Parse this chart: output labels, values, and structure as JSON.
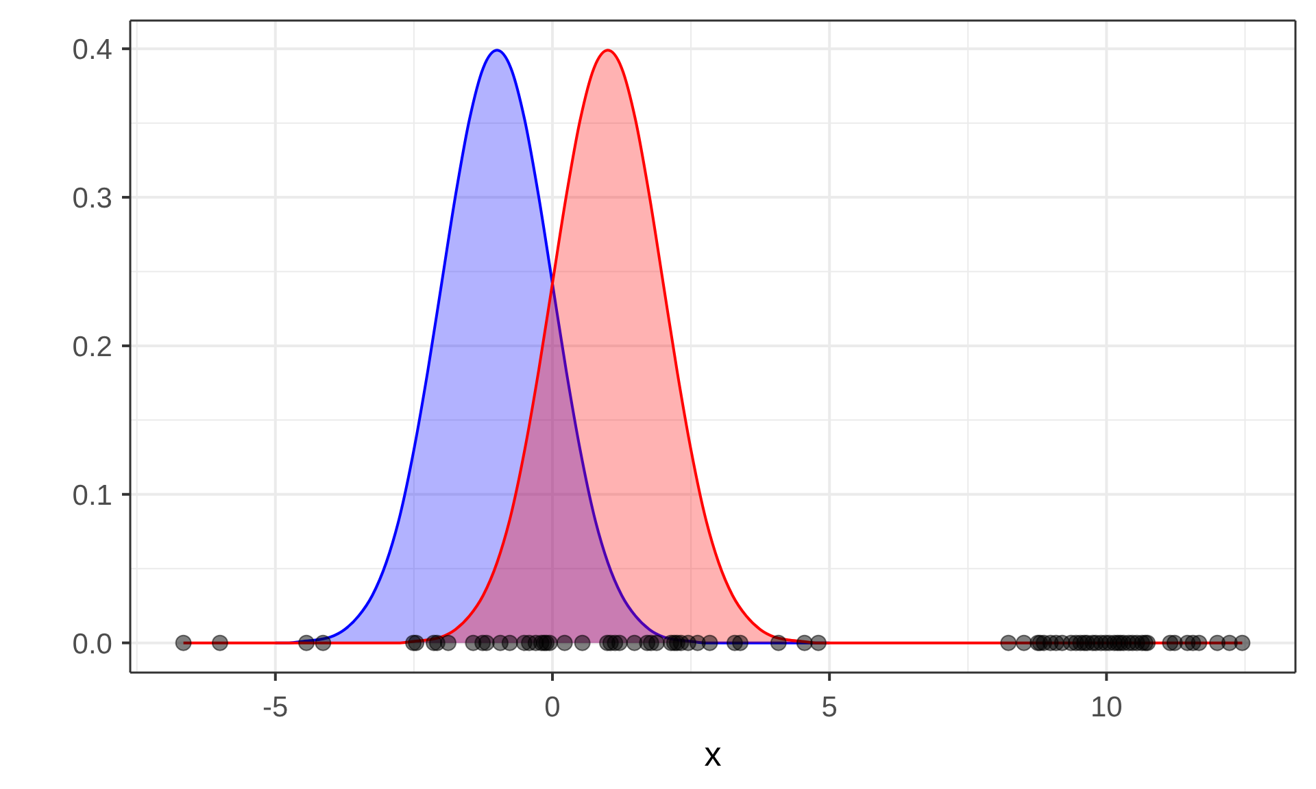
{
  "chart_data": {
    "type": "area",
    "xlabel": "x",
    "x": [
      -6.66,
      -6,
      -5.5,
      -5,
      -4.75,
      -4.5,
      -4.25,
      -4,
      -3.75,
      -3.5,
      -3.25,
      -3,
      -2.75,
      -2.5,
      -2.25,
      -2,
      -1.75,
      -1.5,
      -1.25,
      -1,
      -0.75,
      -0.5,
      -0.25,
      0,
      0.25,
      0.5,
      0.75,
      1,
      1.25,
      1.5,
      1.75,
      2,
      2.25,
      2.5,
      2.75,
      3,
      3.25,
      3.5,
      3.75,
      4,
      4.25,
      4.5,
      4.75,
      5,
      5.5,
      6,
      8,
      10,
      12.45
    ],
    "series": [
      {
        "color": "#0000ff",
        "values": [
          null,
          null,
          null,
          0,
          0,
          0.001,
          0.002,
          0.004,
          0.009,
          0.018,
          0.032,
          0.054,
          0.086,
          0.13,
          0.183,
          0.242,
          0.301,
          0.352,
          0.387,
          0.399,
          0.387,
          0.352,
          0.301,
          0.242,
          0.183,
          0.13,
          0.086,
          0.054,
          0.032,
          0.018,
          0.009,
          0.004,
          0.002,
          0.001,
          0,
          0,
          0,
          0,
          0,
          0,
          0,
          0,
          0,
          0,
          null,
          null,
          null,
          null,
          null
        ]
      },
      {
        "color": "#ff0000",
        "values": [
          0,
          0,
          0,
          0,
          0,
          0,
          0,
          0,
          0,
          0,
          0,
          0,
          0,
          0.001,
          0.002,
          0.004,
          0.009,
          0.018,
          0.032,
          0.054,
          0.086,
          0.13,
          0.183,
          0.242,
          0.301,
          0.352,
          0.387,
          0.399,
          0.387,
          0.352,
          0.301,
          0.242,
          0.183,
          0.13,
          0.086,
          0.054,
          0.032,
          0.018,
          0.009,
          0.004,
          0.002,
          0.001,
          0,
          0,
          0,
          0,
          0,
          0,
          0
        ]
      },
      {
        "type": "scatter",
        "color": "#000000",
        "marker": "circle",
        "x": [
          -6.66,
          -6.0,
          -4.44,
          -4.14,
          -2.51,
          -2.46,
          -2.14,
          -2.08,
          -1.88,
          -1.43,
          -1.26,
          -1.19,
          -0.94,
          -0.77,
          -0.51,
          -0.42,
          -0.3,
          -0.2,
          -0.15,
          -0.11,
          -0.05,
          0.22,
          0.54,
          0.99,
          1.05,
          1.13,
          1.21,
          1.48,
          1.71,
          1.78,
          1.88,
          2.14,
          2.2,
          2.25,
          2.32,
          2.45,
          2.62,
          2.84,
          3.29,
          3.39,
          4.08,
          4.55,
          4.8,
          8.23,
          8.51,
          8.76,
          8.8,
          8.87,
          8.99,
          9.09,
          9.2,
          9.36,
          9.45,
          9.53,
          9.6,
          9.65,
          9.75,
          9.81,
          9.9,
          9.98,
          10.05,
          10.14,
          10.2,
          10.25,
          10.31,
          10.4,
          10.47,
          10.55,
          10.64,
          10.7,
          10.74,
          11.15,
          11.23,
          11.46,
          11.56,
          11.67,
          12.0,
          12.22,
          12.45
        ],
        "values": [
          0,
          0,
          0,
          0,
          0,
          0,
          0,
          0,
          0,
          0,
          0,
          0,
          0,
          0,
          0,
          0,
          0,
          0,
          0,
          0,
          0,
          0,
          0,
          0,
          0,
          0,
          0,
          0,
          0,
          0,
          0,
          0,
          0,
          0,
          0,
          0,
          0,
          0,
          0,
          0,
          0,
          0,
          0,
          0,
          0,
          0,
          0,
          0,
          0,
          0,
          0,
          0,
          0,
          0,
          0,
          0,
          0,
          0,
          0,
          0,
          0,
          0,
          0,
          0,
          0,
          0,
          0,
          0,
          0,
          0,
          0,
          0,
          0,
          0,
          0,
          0,
          0,
          0,
          0
        ]
      }
    ],
    "xlim": [
      -7.62,
      13.41
    ],
    "ylim": [
      -0.02,
      0.419
    ],
    "xticks": [
      -5,
      0,
      5,
      10
    ],
    "yticks": [
      {
        "value": 0,
        "label": "0.0"
      },
      0.1,
      0.2,
      0.3,
      0.4
    ],
    "grid": true
  }
}
